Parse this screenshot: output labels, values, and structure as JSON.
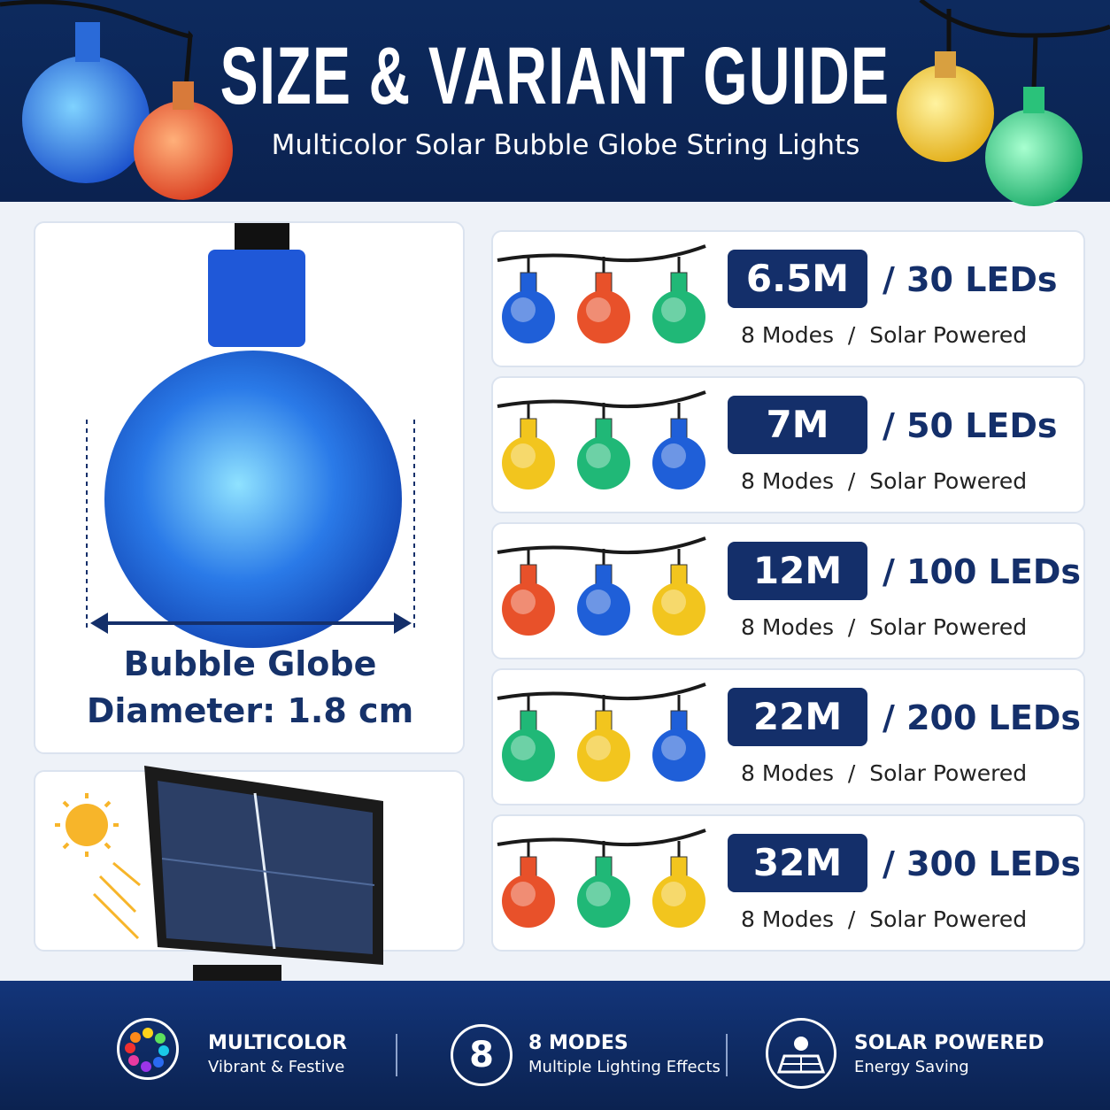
{
  "header": {
    "title": "SIZE & VARIANT GUIDE",
    "subtitle": "Multicolor Solar Bubble Globe String Lights"
  },
  "diameter": {
    "line1": "Bubble Globe",
    "line2": "Diameter: 1.8 cm"
  },
  "variants": [
    {
      "length": "6.5M",
      "leds": "/ 30 LEDs",
      "features": "8 Modes  /  Solar Powered",
      "bulbs": [
        "#1f5fd8",
        "#e8512a",
        "#20b877"
      ]
    },
    {
      "length": "7M",
      "leds": "/ 50 LEDs",
      "features": "8 Modes  /  Solar Powered",
      "bulbs": [
        "#f2c51e",
        "#20b877",
        "#1f5fd8"
      ]
    },
    {
      "length": "12M",
      "leds": "/ 100 LEDs",
      "features": "8 Modes  /  Solar Powered",
      "bulbs": [
        "#e8512a",
        "#1f5fd8",
        "#f2c51e"
      ]
    },
    {
      "length": "22M",
      "leds": "/ 200 LEDs",
      "features": "8 Modes  /  Solar Powered",
      "bulbs": [
        "#20b877",
        "#f2c51e",
        "#1f5fd8"
      ]
    },
    {
      "length": "32M",
      "leds": "/ 300 LEDs",
      "features": "8 Modes  /  Solar Powered",
      "bulbs": [
        "#e8512a",
        "#20b877",
        "#f2c51e"
      ]
    }
  ],
  "footer": [
    {
      "title": "MULTICOLOR",
      "subtitle": "Vibrant & Festive"
    },
    {
      "badge": "8",
      "title": "8 MODES",
      "subtitle": "Multiple Lighting Effects"
    },
    {
      "title": "SOLAR POWERED",
      "subtitle": "Energy Saving"
    }
  ]
}
